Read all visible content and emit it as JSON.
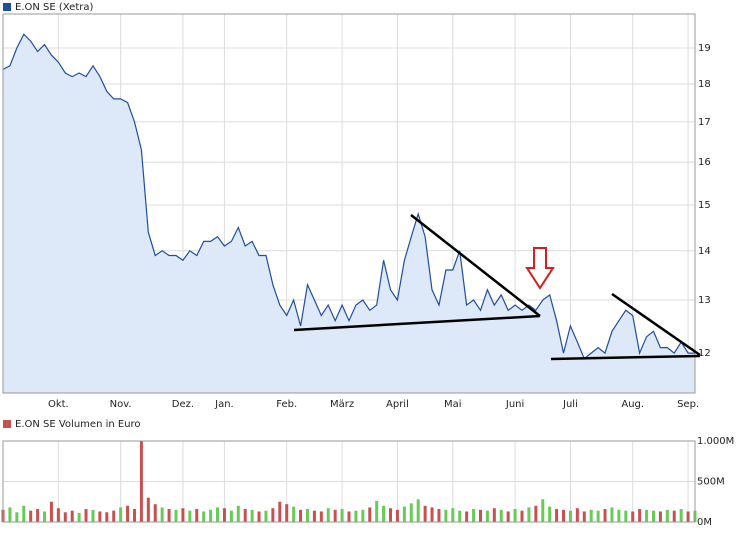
{
  "chart_data": [
    {
      "type": "line",
      "title": "E.ON SE (Xetra)",
      "color": "#1f4e9c",
      "fill": "#dde8f8",
      "log_scale": true,
      "grid": true,
      "values": [
        18.4,
        18.5,
        19.0,
        19.4,
        19.2,
        18.9,
        19.1,
        18.8,
        18.6,
        18.3,
        18.2,
        18.3,
        18.2,
        18.5,
        18.2,
        17.8,
        17.6,
        17.6,
        17.5,
        17.0,
        16.3,
        14.4,
        13.9,
        14.0,
        13.9,
        13.9,
        13.8,
        14.0,
        13.9,
        14.2,
        14.2,
        14.3,
        14.1,
        14.2,
        14.5,
        14.1,
        14.2,
        13.9,
        13.9,
        13.3,
        12.9,
        12.7,
        13.0,
        12.5,
        13.3,
        13.0,
        12.7,
        12.9,
        12.6,
        12.9,
        12.6,
        12.9,
        13.0,
        12.8,
        12.9,
        13.8,
        13.2,
        13.0,
        13.8,
        14.3,
        14.8,
        14.3,
        13.2,
        12.9,
        13.6,
        13.6,
        14.0,
        12.9,
        13.0,
        12.8,
        13.2,
        12.9,
        13.1,
        12.8,
        12.9,
        12.8,
        12.9,
        12.8,
        13.0,
        13.1,
        12.6,
        12.0,
        12.5,
        12.2,
        11.9,
        12.0,
        12.1,
        12.0,
        12.4,
        12.6,
        12.8,
        12.7,
        12.0,
        12.3,
        12.4,
        12.1,
        12.1,
        12.0,
        12.2,
        12.0,
        12.0
      ],
      "xlim": [
        0,
        100
      ],
      "xticks": [
        {
          "value": 8,
          "label": "Okt."
        },
        {
          "value": 17,
          "label": "Nov."
        },
        {
          "value": 26,
          "label": "Dez."
        },
        {
          "value": 32,
          "label": "Jan."
        },
        {
          "value": 41,
          "label": "Feb."
        },
        {
          "value": 49,
          "label": "März"
        },
        {
          "value": 57,
          "label": "April"
        },
        {
          "value": 65,
          "label": "Mai"
        },
        {
          "value": 74,
          "label": "Juni"
        },
        {
          "value": 82,
          "label": "Juli"
        },
        {
          "value": 91,
          "label": "Aug."
        },
        {
          "value": 99,
          "label": "Sep."
        }
      ],
      "ylim": [
        11.3,
        20.0
      ],
      "yticks": [
        12,
        13,
        14,
        15,
        16,
        17,
        18,
        19
      ]
    },
    {
      "type": "bar",
      "title": "E.ON SE Volumen in Euro",
      "color": "#c85050",
      "up_color": "#66cc55",
      "down_color": "#c85050",
      "grid": true,
      "values": [
        150,
        180,
        120,
        200,
        140,
        160,
        130,
        250,
        170,
        120,
        140,
        110,
        160,
        150,
        130,
        120,
        140,
        180,
        200,
        160,
        1000,
        300,
        220,
        180,
        160,
        150,
        170,
        140,
        160,
        130,
        150,
        180,
        170,
        140,
        200,
        160,
        150,
        130,
        140,
        170,
        250,
        220,
        190,
        150,
        160,
        140,
        130,
        170,
        150,
        160,
        130,
        140,
        150,
        180,
        260,
        200,
        170,
        150,
        190,
        230,
        280,
        200,
        180,
        160,
        150,
        170,
        140,
        130,
        160,
        150,
        140,
        170,
        150,
        130,
        160,
        140,
        180,
        200,
        280,
        190,
        160,
        150,
        140,
        170,
        130,
        150,
        140,
        160,
        180,
        150,
        140,
        130,
        160,
        150,
        140,
        130,
        150,
        140,
        160,
        130,
        140
      ],
      "ylim": [
        0,
        1000
      ],
      "yticks": [
        {
          "value": 0,
          "label": "0M"
        },
        {
          "value": 500,
          "label": "500M"
        },
        {
          "value": 1000,
          "label": "1.000M"
        }
      ]
    }
  ]
}
